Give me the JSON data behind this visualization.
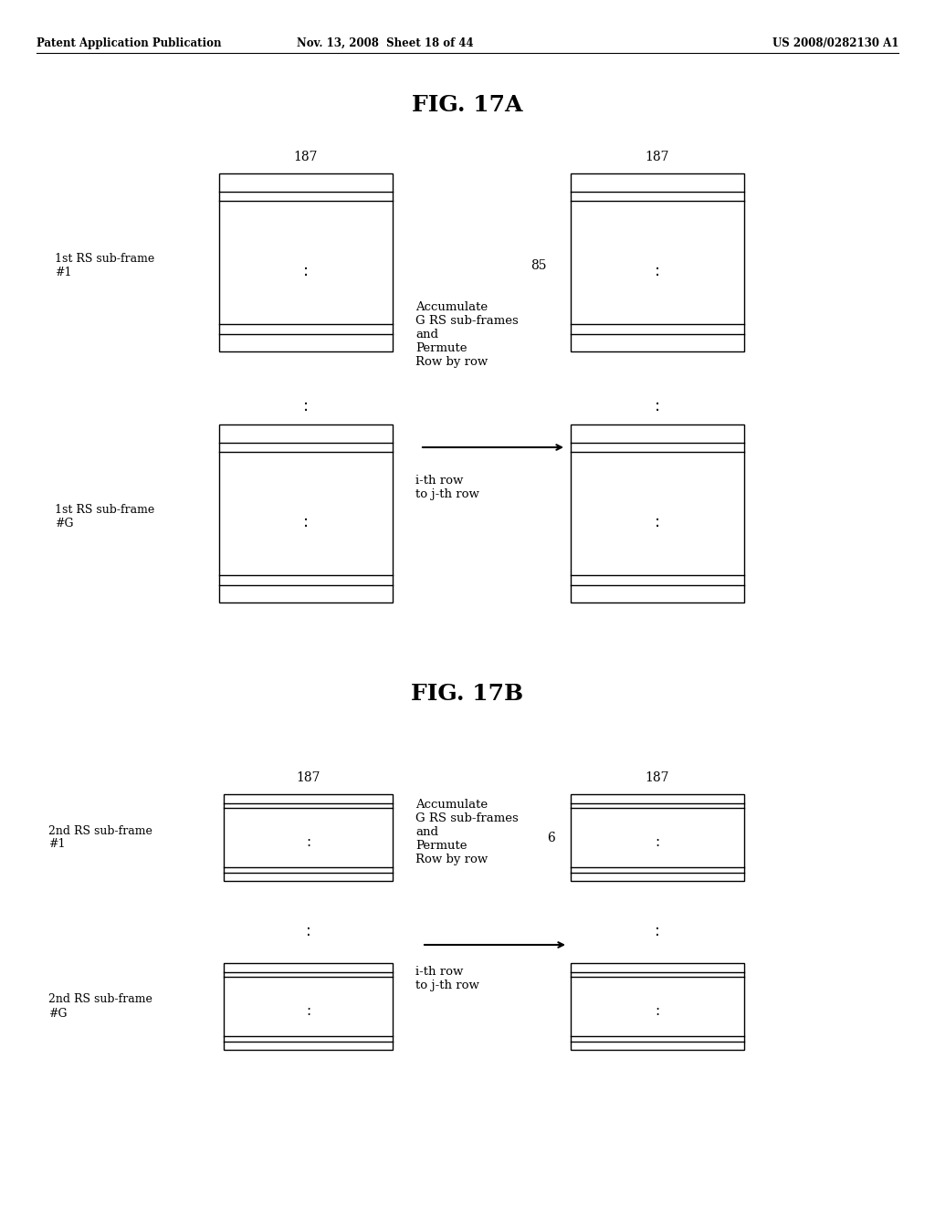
{
  "bg_color": "#ffffff",
  "header_left": "Patent Application Publication",
  "header_mid": "Nov. 13, 2008  Sheet 18 of 44",
  "header_right": "US 2008/0282130 A1",
  "fig_title_A": "FIG. 17A",
  "fig_title_B": "FIG. 17B"
}
